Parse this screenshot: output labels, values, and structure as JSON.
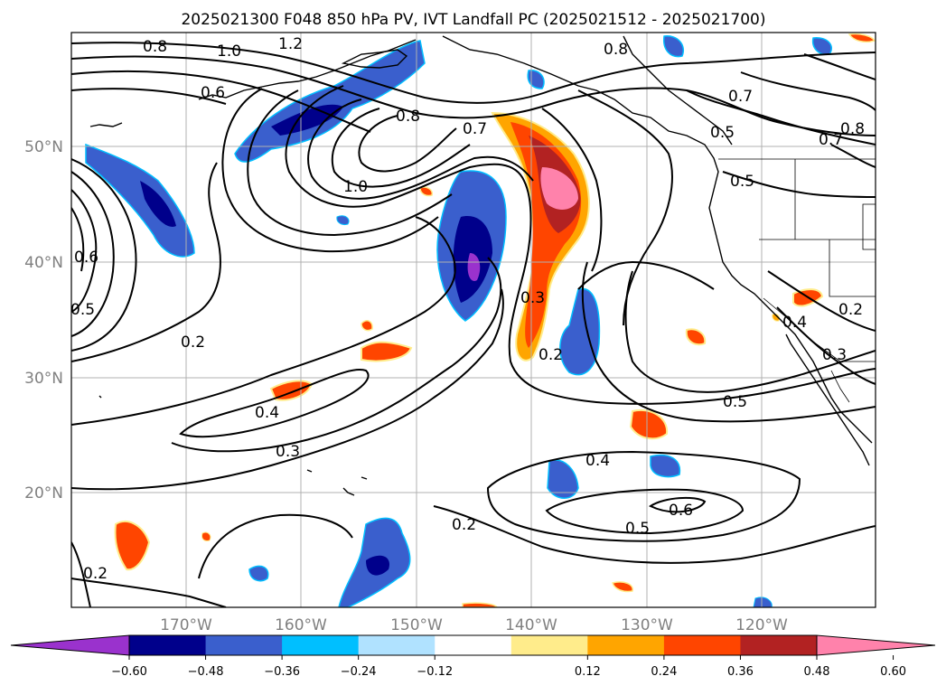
{
  "title": "2025021300 F048 850 hPa PV, IVT Landfall PC (2025021512 - 2025021700)",
  "lat_ticks": [
    "50°N",
    "40°N",
    "30°N",
    "20°N"
  ],
  "lon_ticks": [
    "170°W",
    "160°W",
    "150°W",
    "140°W",
    "130°W",
    "120°W"
  ],
  "colorbar": {
    "tick_labels": [
      "−0.60",
      "−0.48",
      "−0.36",
      "−0.24",
      "−0.12",
      "0.12",
      "0.24",
      "0.36",
      "0.48",
      "0.60"
    ],
    "colors": [
      "#9a32cd",
      "#00008b",
      "#3a5fcd",
      "#00bfff",
      "#b0e2ff",
      "#ffffff",
      "#ffec8b",
      "#ffa500",
      "#ff4500",
      "#b22222",
      "#ff82ab"
    ]
  },
  "contour_labels": [
    "0.8",
    "1.0",
    "1.2",
    "0.6",
    "0.8",
    "0.7",
    "0.5",
    "0.7",
    "0.8",
    "0.5",
    "0.8",
    "0.7",
    "1.0",
    "0.6",
    "0.5",
    "0.3",
    "0.2",
    "0.2",
    "0.4",
    "0.3",
    "0.2",
    "0.4",
    "0.3",
    "0.5",
    "0.4",
    "0.6",
    "0.5",
    "0.2",
    "0.2"
  ]
}
